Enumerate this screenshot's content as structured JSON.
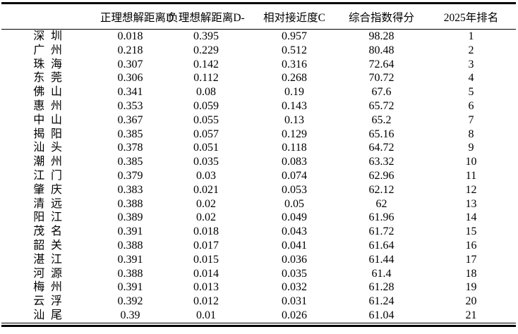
{
  "table": {
    "columns": [
      {
        "key": "city",
        "label": ""
      },
      {
        "key": "d_plus",
        "label": "正理想解距离D"
      },
      {
        "key": "d_minus",
        "label": "负理想解距离D-"
      },
      {
        "key": "c",
        "label": "相对接近度C"
      },
      {
        "key": "score",
        "label": "综合指数得分"
      },
      {
        "key": "rank",
        "label": "2025年排名"
      }
    ],
    "rows": [
      {
        "city": "深圳",
        "d_plus": "0.018",
        "d_minus": "0.395",
        "c": "0.957",
        "score": "98.28",
        "rank": "1"
      },
      {
        "city": "广州",
        "d_plus": "0.218",
        "d_minus": "0.229",
        "c": "0.512",
        "score": "80.48",
        "rank": "2"
      },
      {
        "city": "珠海",
        "d_plus": "0.307",
        "d_minus": "0.142",
        "c": "0.316",
        "score": "72.64",
        "rank": "3"
      },
      {
        "city": "东莞",
        "d_plus": "0.306",
        "d_minus": "0.112",
        "c": "0.268",
        "score": "70.72",
        "rank": "4"
      },
      {
        "city": "佛山",
        "d_plus": "0.341",
        "d_minus": "0.08",
        "c": "0.19",
        "score": "67.6",
        "rank": "5"
      },
      {
        "city": "惠州",
        "d_plus": "0.353",
        "d_minus": "0.059",
        "c": "0.143",
        "score": "65.72",
        "rank": "6"
      },
      {
        "city": "中山",
        "d_plus": "0.367",
        "d_minus": "0.055",
        "c": "0.13",
        "score": "65.2",
        "rank": "7"
      },
      {
        "city": "揭阳",
        "d_plus": "0.385",
        "d_minus": "0.057",
        "c": "0.129",
        "score": "65.16",
        "rank": "8"
      },
      {
        "city": "汕头",
        "d_plus": "0.378",
        "d_minus": "0.051",
        "c": "0.118",
        "score": "64.72",
        "rank": "9"
      },
      {
        "city": "潮州",
        "d_plus": "0.385",
        "d_minus": "0.035",
        "c": "0.083",
        "score": "63.32",
        "rank": "10"
      },
      {
        "city": "江门",
        "d_plus": "0.379",
        "d_minus": "0.03",
        "c": "0.074",
        "score": "62.96",
        "rank": "11"
      },
      {
        "city": "肇庆",
        "d_plus": "0.383",
        "d_minus": "0.021",
        "c": "0.053",
        "score": "62.12",
        "rank": "12"
      },
      {
        "city": "清远",
        "d_plus": "0.388",
        "d_minus": "0.02",
        "c": "0.05",
        "score": "62",
        "rank": "13"
      },
      {
        "city": "阳江",
        "d_plus": "0.389",
        "d_minus": "0.02",
        "c": "0.049",
        "score": "61.96",
        "rank": "14"
      },
      {
        "city": "茂名",
        "d_plus": "0.391",
        "d_minus": "0.018",
        "c": "0.043",
        "score": "61.72",
        "rank": "15"
      },
      {
        "city": "韶关",
        "d_plus": "0.388",
        "d_minus": "0.017",
        "c": "0.041",
        "score": "61.64",
        "rank": "16"
      },
      {
        "city": "湛江",
        "d_plus": "0.391",
        "d_minus": "0.015",
        "c": "0.036",
        "score": "61.44",
        "rank": "17"
      },
      {
        "city": "河源",
        "d_plus": "0.388",
        "d_minus": "0.014",
        "c": "0.035",
        "score": "61.4",
        "rank": "18"
      },
      {
        "city": "梅州",
        "d_plus": "0.391",
        "d_minus": "0.013",
        "c": "0.032",
        "score": "61.28",
        "rank": "19"
      },
      {
        "city": "云浮",
        "d_plus": "0.392",
        "d_minus": "0.012",
        "c": "0.031",
        "score": "61.24",
        "rank": "20"
      },
      {
        "city": "汕尾",
        "d_plus": "0.39",
        "d_minus": "0.01",
        "c": "0.026",
        "score": "61.04",
        "rank": "21"
      }
    ],
    "colors": {
      "rule": "#000000",
      "text": "#000000",
      "background": "#ffffff"
    }
  }
}
